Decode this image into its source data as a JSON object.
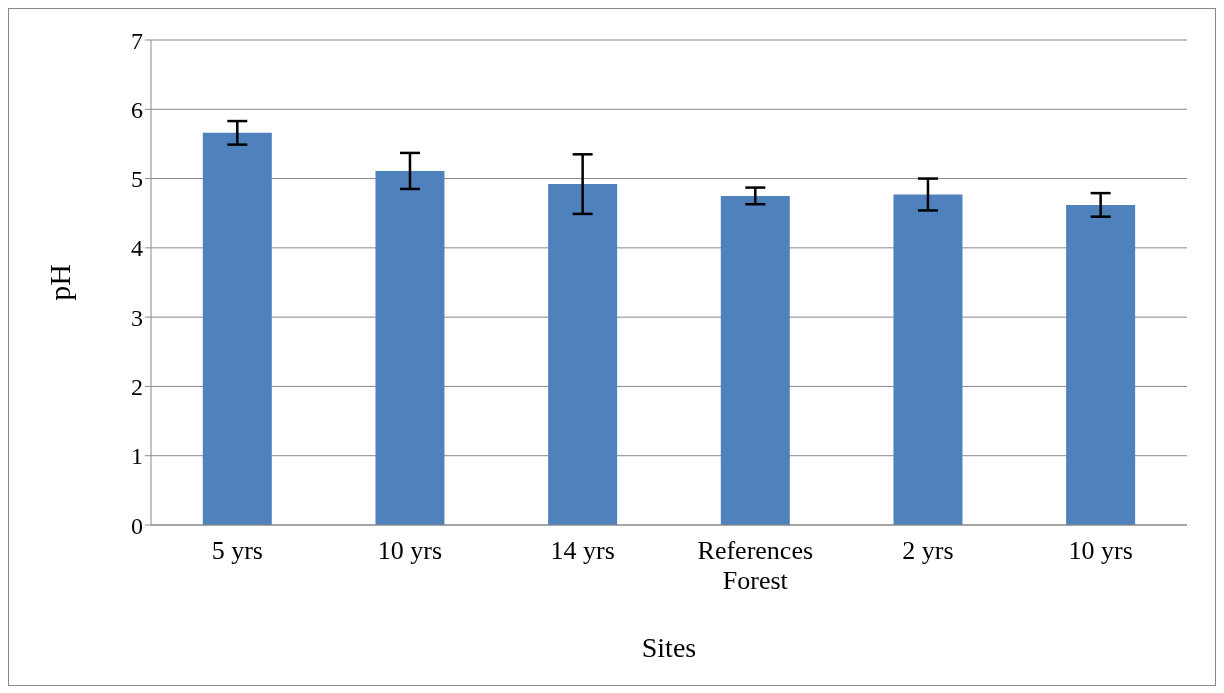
{
  "chart_data": {
    "type": "bar",
    "xlabel": "Sites",
    "ylabel": "pH",
    "categories": [
      "5 yrs",
      "10 yrs",
      "14 yrs",
      "References Forest",
      "2 yrs",
      "10 yrs"
    ],
    "values": [
      5.66,
      5.11,
      4.92,
      4.75,
      4.77,
      4.62
    ],
    "errors": [
      0.17,
      0.26,
      0.43,
      0.12,
      0.23,
      0.17
    ],
    "color": "#4f81bd",
    "ylim": [
      0,
      7
    ],
    "yticks": [
      0,
      1,
      2,
      3,
      4,
      5,
      6,
      7
    ],
    "grid": "y",
    "legend": false
  }
}
